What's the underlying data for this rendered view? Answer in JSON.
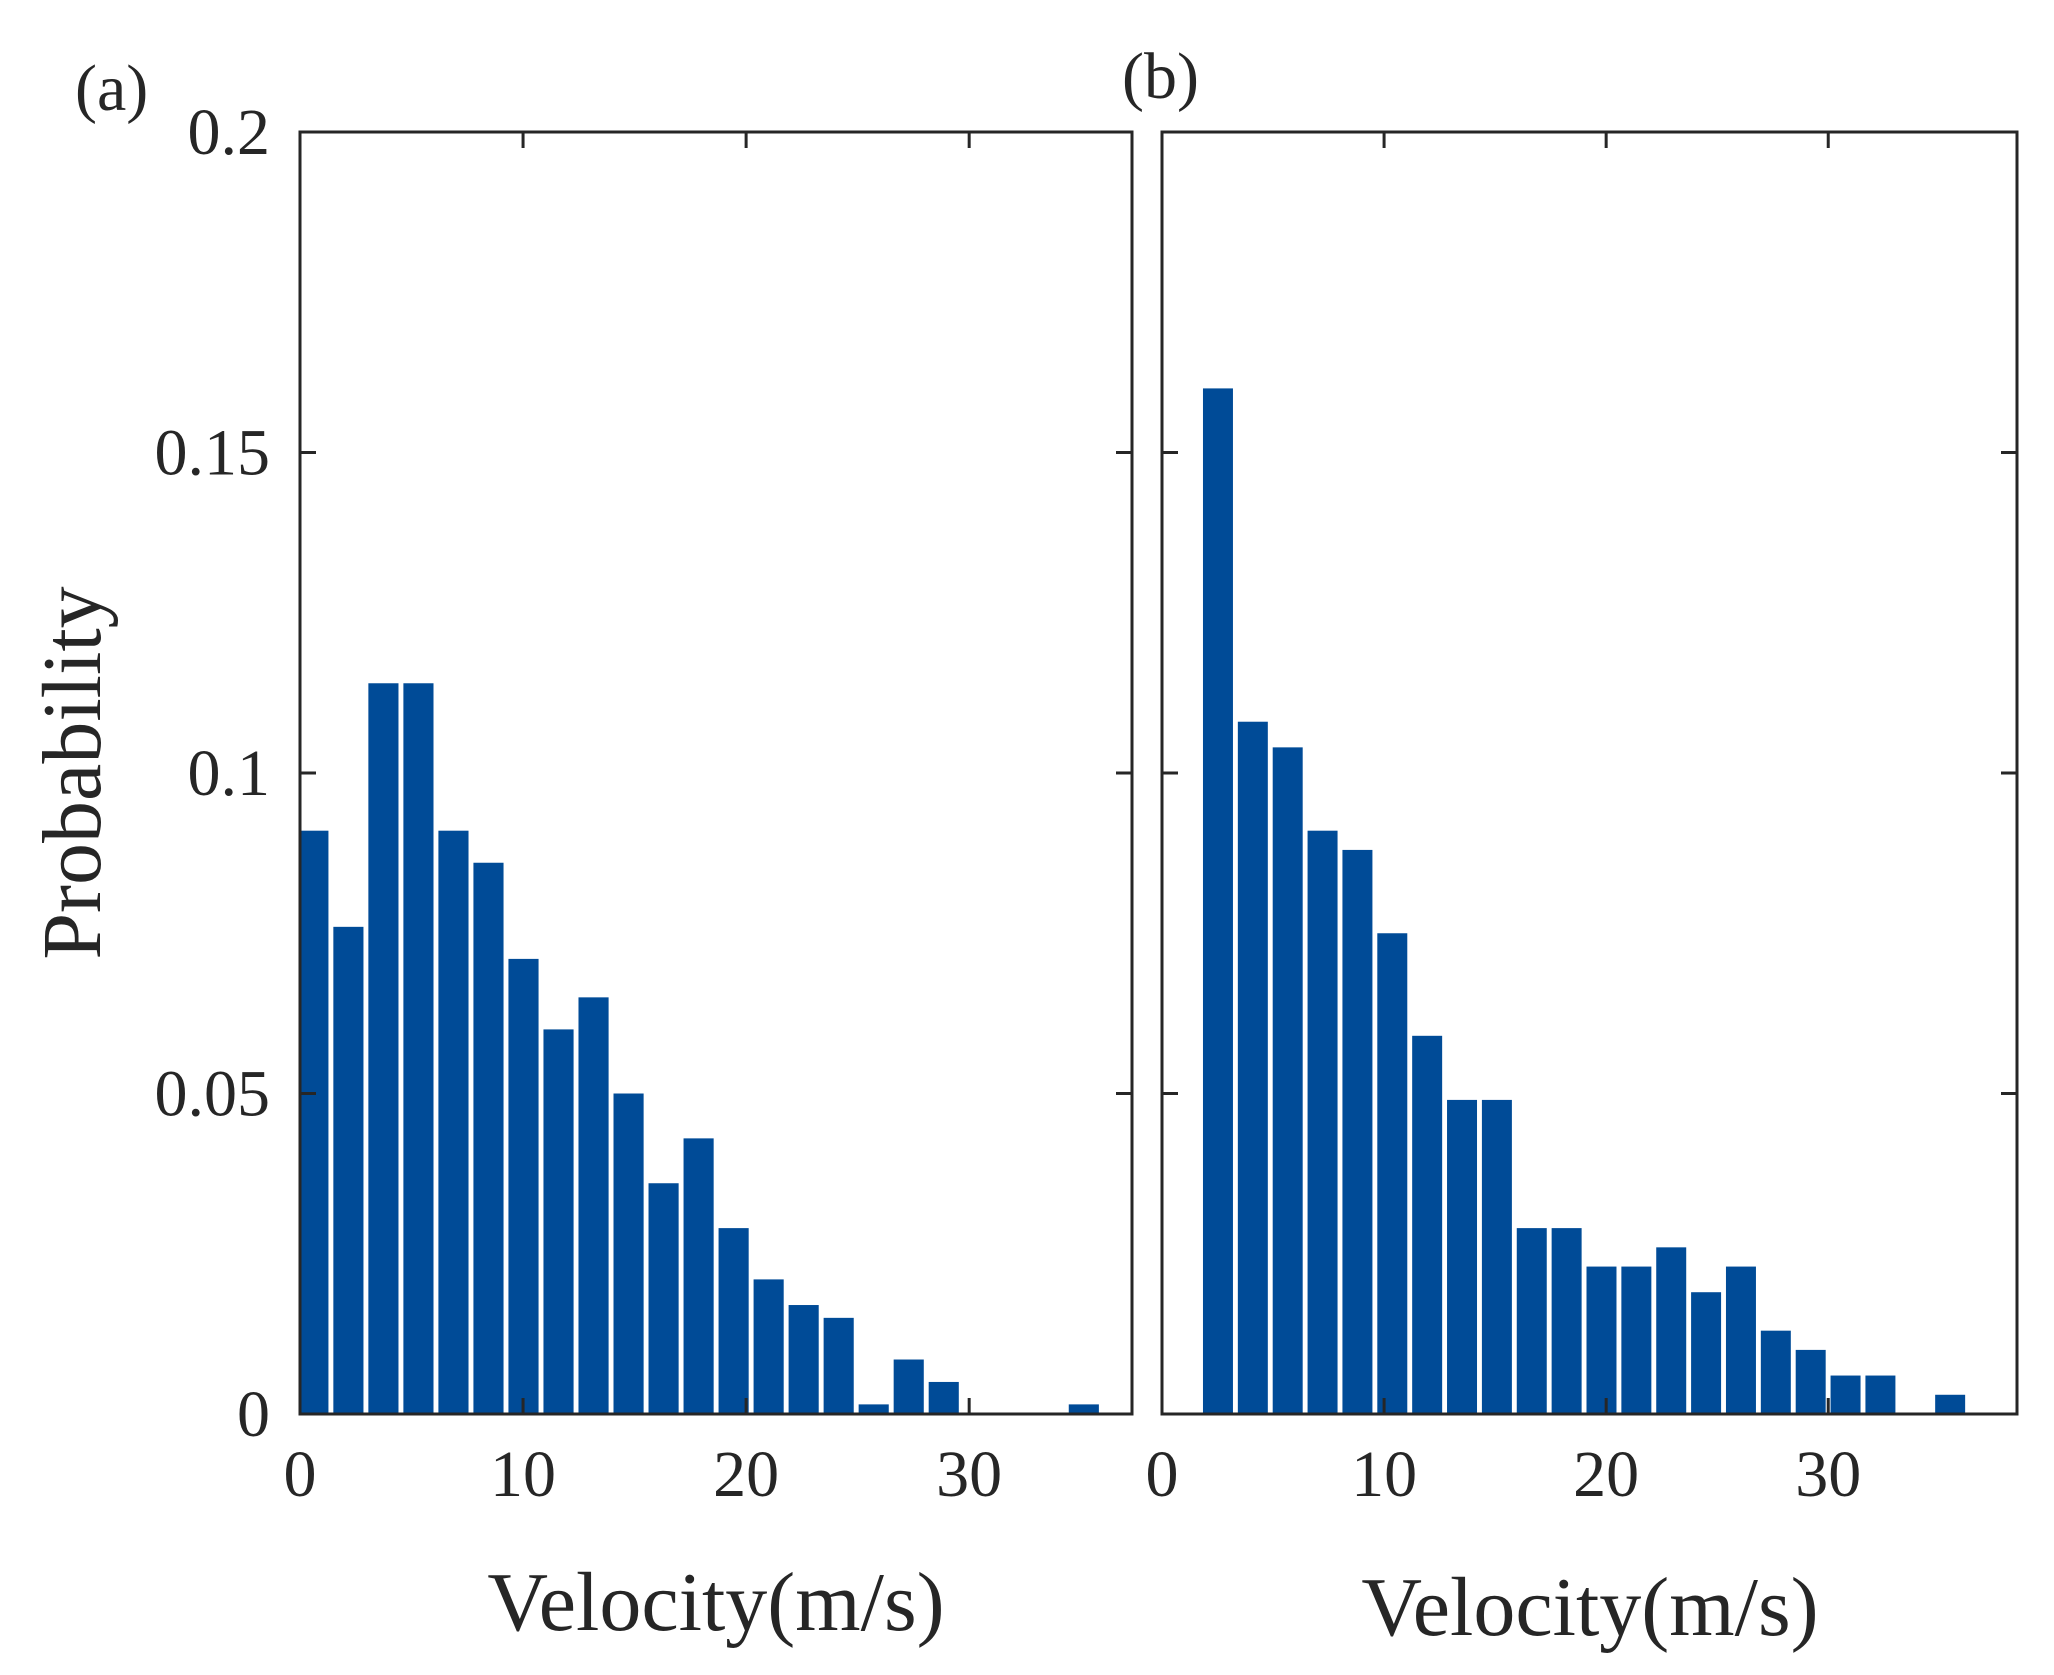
{
  "colors": {
    "bar": "#004B97",
    "axis": "#262626"
  },
  "ylabel": "Probability",
  "chart_data": [
    {
      "type": "bar",
      "panel_label": "(a)",
      "title": "",
      "xlabel": "Velocity(m/s)",
      "ylabel": "Probability",
      "xlim": [
        0,
        37.3
      ],
      "ylim": [
        0,
        0.2
      ],
      "grid": false,
      "legend": "none",
      "bin_width": 1.57,
      "x": [
        0.6,
        2.17,
        3.74,
        5.31,
        6.88,
        8.45,
        10.02,
        11.59,
        13.16,
        14.73,
        16.3,
        17.87,
        19.44,
        21.01,
        22.58,
        24.15,
        25.72,
        27.29,
        28.86,
        30.43,
        32.0,
        33.57,
        35.14
      ],
      "values": [
        0.091,
        0.076,
        0.114,
        0.114,
        0.091,
        0.086,
        0.071,
        0.06,
        0.065,
        0.05,
        0.036,
        0.043,
        0.029,
        0.021,
        0.017,
        0.015,
        0.0015,
        0.0085,
        0.005,
        0,
        0,
        0,
        0.0015
      ],
      "xticks": [
        "0",
        "10",
        "20",
        "30"
      ],
      "xtick_values": [
        0,
        10,
        20,
        30
      ],
      "yticks": [
        "0",
        "0.05",
        "0.1",
        "0.15",
        "0.2"
      ],
      "ytick_values": [
        0,
        0.05,
        0.1,
        0.15,
        0.2
      ]
    },
    {
      "type": "bar",
      "panel_label": "(b)",
      "title": "",
      "xlabel": "Velocity(m/s)",
      "ylabel": "",
      "xlim": [
        0,
        38.5
      ],
      "ylim": [
        0,
        0.2
      ],
      "grid": false,
      "legend": "none",
      "bin_width": 1.57,
      "x": [
        2.52,
        4.09,
        5.66,
        7.23,
        8.8,
        10.37,
        11.94,
        13.51,
        15.08,
        16.65,
        18.22,
        19.79,
        21.36,
        22.93,
        24.5,
        26.07,
        27.64,
        29.21,
        30.78,
        32.35,
        33.92,
        35.49
      ],
      "values": [
        0.16,
        0.108,
        0.104,
        0.091,
        0.088,
        0.075,
        0.059,
        0.049,
        0.049,
        0.029,
        0.029,
        0.023,
        0.023,
        0.026,
        0.019,
        0.023,
        0.013,
        0.01,
        0.006,
        0.006,
        0,
        0.003
      ],
      "xticks": [
        "0",
        "10",
        "20",
        "30"
      ],
      "xtick_values": [
        0,
        10,
        20,
        30
      ],
      "yticks": [],
      "ytick_values": [
        0,
        0.05,
        0.1,
        0.15,
        0.2
      ]
    }
  ]
}
